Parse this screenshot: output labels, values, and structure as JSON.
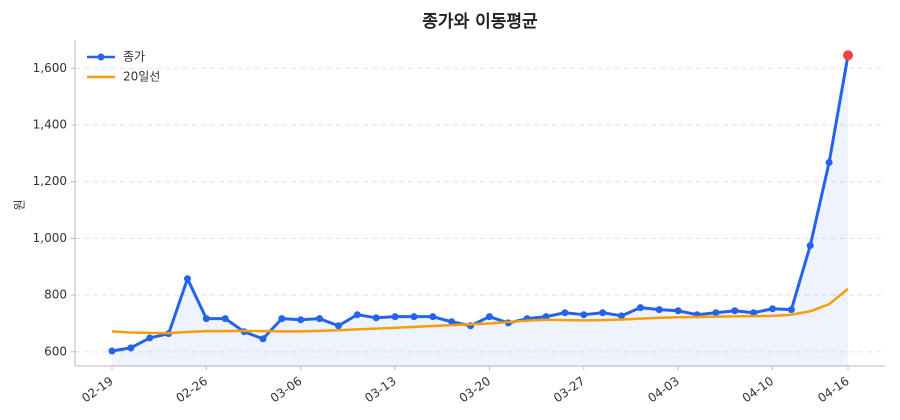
{
  "chart_data": {
    "type": "line",
    "title": "종가와 이동평균",
    "ylabel": "원",
    "categories": [
      "02-19",
      null,
      null,
      null,
      null,
      "02-26",
      null,
      null,
      null,
      null,
      "03-06",
      null,
      null,
      null,
      null,
      "03-13",
      null,
      null,
      null,
      null,
      "03-20",
      null,
      null,
      null,
      null,
      "03-27",
      null,
      null,
      null,
      null,
      "04-03",
      null,
      null,
      null,
      null,
      "04-10",
      null,
      null,
      null,
      "04-16"
    ],
    "series": [
      {
        "name": "종가",
        "color": "#2563eb",
        "markers": true,
        "fill_area": true,
        "last_point_color": "#ef4444",
        "values": [
          603,
          614,
          649,
          664,
          858,
          717,
          717,
          671,
          646,
          717,
          713,
          717,
          692,
          731,
          720,
          724,
          724,
          724,
          706,
          692,
          724,
          702,
          717,
          724,
          738,
          731,
          738,
          727,
          756,
          749,
          745,
          731,
          738,
          745,
          738,
          752,
          749,
          975,
          1268,
          1646
        ]
      },
      {
        "name": "20일선",
        "color": "#f59e0b",
        "markers": false,
        "values": [
          672,
          668,
          667,
          666,
          670,
          673,
          673,
          674,
          673,
          672,
          672,
          674,
          676,
          679,
          682,
          685,
          688,
          691,
          694,
          697,
          700,
          705,
          710,
          713,
          712,
          711,
          712,
          714,
          717,
          720,
          722,
          723,
          724,
          725,
          726,
          727,
          731,
          743,
          768,
          822
        ]
      }
    ],
    "ylim": [
      550,
      1700
    ],
    "yticks": [
      600,
      800,
      {
        "value": 1000,
        "label": "1,000"
      },
      {
        "value": 1200,
        "label": "1,200"
      },
      {
        "value": 1400,
        "label": "1,400"
      },
      {
        "value": 1600,
        "label": "1,600"
      }
    ],
    "grid": true,
    "legend": "upper left"
  }
}
